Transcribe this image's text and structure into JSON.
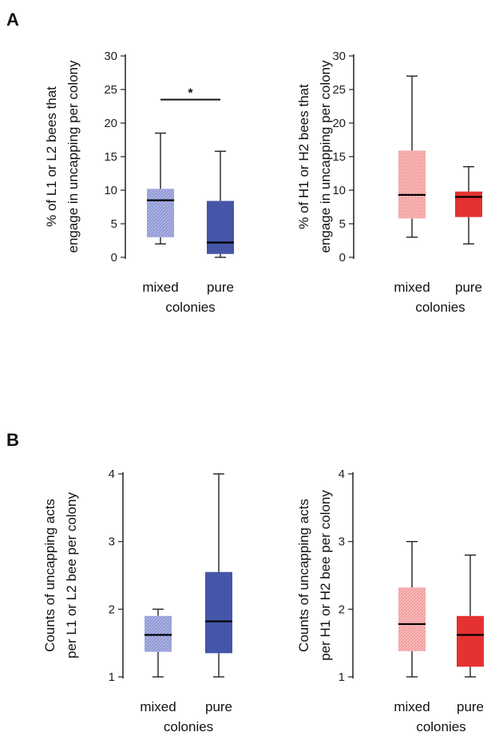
{
  "panels": {
    "A": "A",
    "B": "B"
  },
  "chart_data": [
    {
      "type": "box",
      "panel": "A",
      "ylabel_lines": [
        "% of L1 or L2 bees that",
        "engage in uncapping per colony"
      ],
      "categories": [
        "mixed",
        "pure"
      ],
      "xlabel": "colonies",
      "ylim": [
        0,
        30
      ],
      "yticks": [
        0,
        5,
        10,
        15,
        20,
        25,
        30
      ],
      "boxes": [
        {
          "min": 2,
          "q1": 3,
          "median": 8.5,
          "q3": 10.2,
          "max": 18.5,
          "color": "#8f98d6",
          "pattern": true
        },
        {
          "min": 0,
          "q1": 0.5,
          "median": 2.2,
          "q3": 8.4,
          "max": 15.8,
          "color": "#4556a8",
          "pattern": false
        }
      ],
      "significance": {
        "from": 0,
        "to": 1,
        "y": 23.5,
        "label": "*"
      }
    },
    {
      "type": "box",
      "panel": "A",
      "ylabel_lines": [
        "% of H1 or H2 bees that",
        "engage in uncapping per colony"
      ],
      "categories": [
        "mixed",
        "pure"
      ],
      "xlabel": "colonies",
      "ylim": [
        0,
        30
      ],
      "yticks": [
        0,
        5,
        10,
        15,
        20,
        25,
        30
      ],
      "boxes": [
        {
          "min": 3,
          "q1": 5.8,
          "median": 9.3,
          "q3": 15.9,
          "max": 27,
          "color": "#f2a0a0",
          "pattern": true
        },
        {
          "min": 2,
          "q1": 6,
          "median": 9,
          "q3": 9.8,
          "max": 13.5,
          "color": "#e53131",
          "pattern": false
        }
      ]
    },
    {
      "type": "box",
      "panel": "B",
      "ylabel_lines": [
        "Counts of uncapping acts",
        "per L1 or L2  bee per colony"
      ],
      "categories": [
        "mixed",
        "pure"
      ],
      "xlabel": "colonies",
      "ylim": [
        1,
        4
      ],
      "yticks": [
        1,
        2,
        3,
        4
      ],
      "boxes": [
        {
          "min": 1,
          "q1": 1.37,
          "median": 1.62,
          "q3": 1.9,
          "max": 2,
          "color": "#8f98d6",
          "pattern": true
        },
        {
          "min": 1,
          "q1": 1.35,
          "median": 1.82,
          "q3": 2.55,
          "max": 4,
          "color": "#4556a8",
          "pattern": false
        }
      ]
    },
    {
      "type": "box",
      "panel": "B",
      "ylabel_lines": [
        "Counts of uncapping acts",
        "per H1 or H2  bee per colony"
      ],
      "categories": [
        "mixed",
        "pure"
      ],
      "xlabel": "colonies",
      "ylim": [
        1,
        4
      ],
      "yticks": [
        1,
        2,
        3,
        4
      ],
      "boxes": [
        {
          "min": 1,
          "q1": 1.38,
          "median": 1.78,
          "q3": 2.32,
          "max": 3,
          "color": "#f2a0a0",
          "pattern": true
        },
        {
          "min": 1,
          "q1": 1.15,
          "median": 1.62,
          "q3": 1.9,
          "max": 2.8,
          "color": "#e53131",
          "pattern": false
        }
      ]
    }
  ]
}
